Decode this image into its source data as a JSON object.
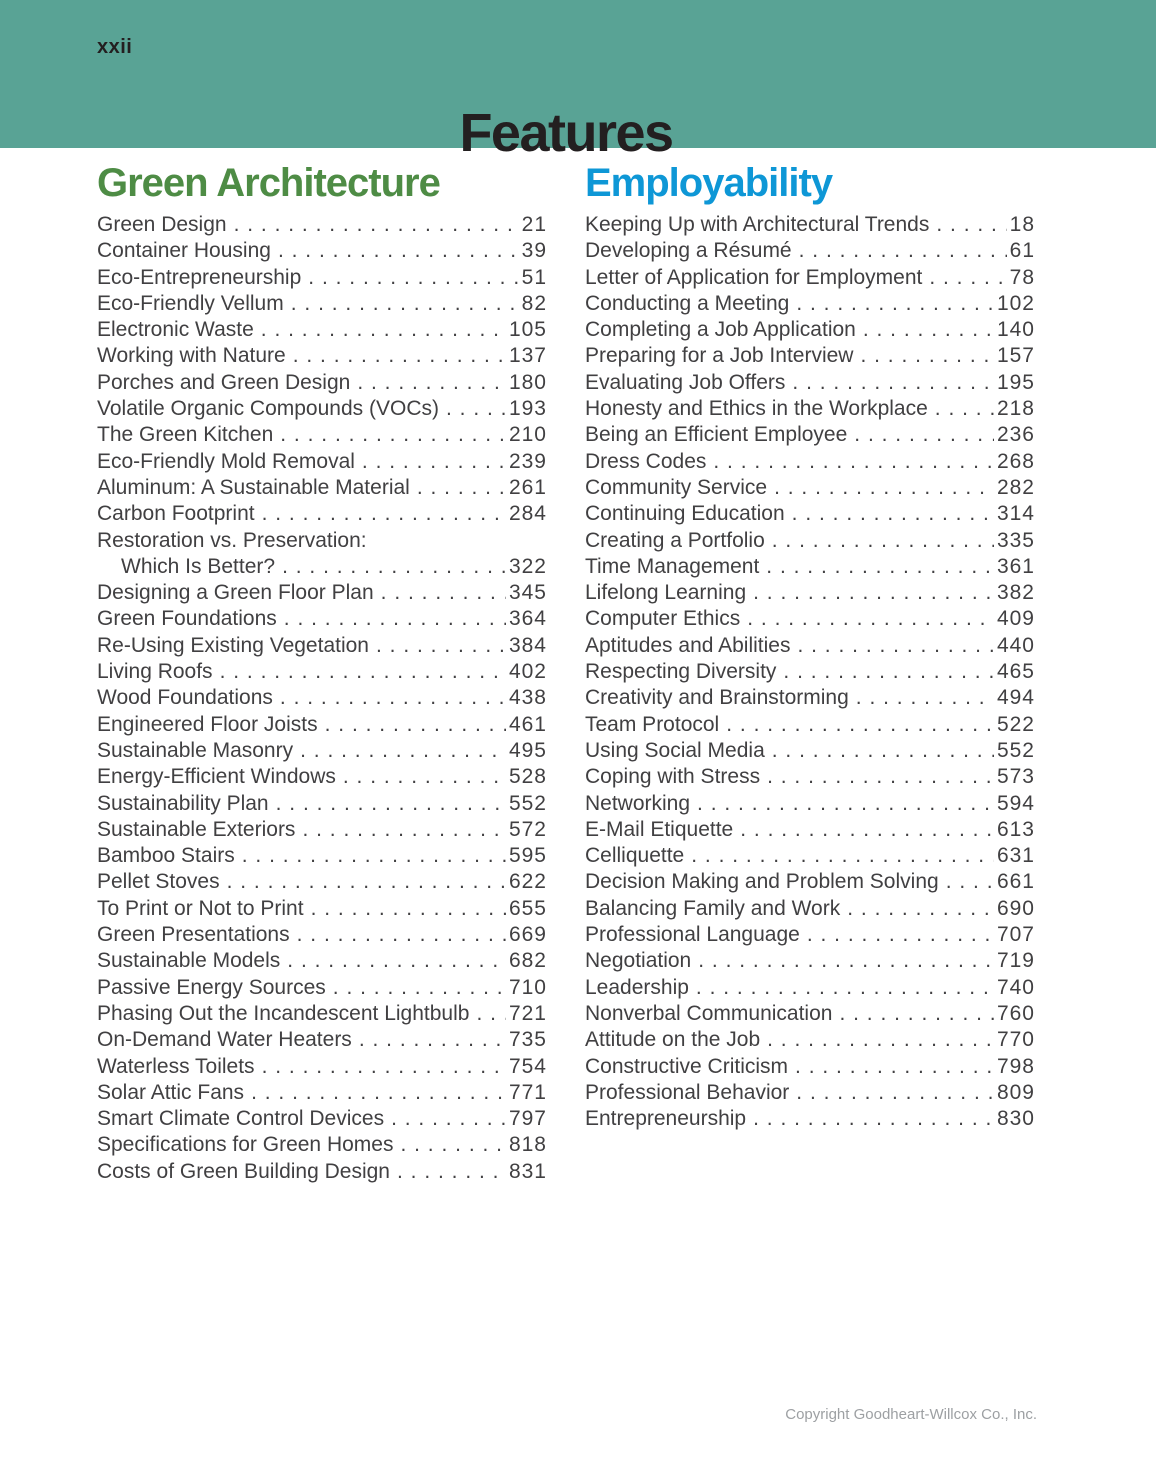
{
  "page": {
    "folio": "xxii",
    "title": "Features",
    "copyright": "Copyright Goodheart-Willcox Co., Inc."
  },
  "colors": {
    "header_band": "#59A395",
    "title_ink": "#231F20",
    "green_heading": "#4E8C45",
    "blue_heading": "#0E97D6",
    "body_text": "#414042",
    "copyright_gray": "#9DA0A3"
  },
  "sections": [
    {
      "heading": "Green Architecture",
      "entries": [
        {
          "title": "Green Design",
          "page": "21"
        },
        {
          "title": "Container Housing",
          "page": "39"
        },
        {
          "title": "Eco-Entrepreneurship",
          "page": "51"
        },
        {
          "title": "Eco-Friendly Vellum",
          "page": "82"
        },
        {
          "title": "Electronic Waste",
          "page": "105"
        },
        {
          "title": "Working with Nature",
          "page": "137"
        },
        {
          "title": "Porches and Green Design",
          "page": "180"
        },
        {
          "title": "Volatile Organic Compounds (VOCs)",
          "page": "193"
        },
        {
          "title": "The Green Kitchen",
          "page": "210"
        },
        {
          "title": "Eco-Friendly Mold Removal",
          "page": "239"
        },
        {
          "title": "Aluminum: A Sustainable Material",
          "page": "261"
        },
        {
          "title": "Carbon Footprint",
          "page": "284"
        },
        {
          "title": "Restoration vs. Preservation:",
          "page": ""
        },
        {
          "title": "Which Is Better?",
          "page": "322",
          "indent": true
        },
        {
          "title": "Designing a Green Floor Plan",
          "page": "345"
        },
        {
          "title": "Green Foundations",
          "page": "364"
        },
        {
          "title": "Re-Using Existing Vegetation",
          "page": "384"
        },
        {
          "title": "Living Roofs",
          "page": "402"
        },
        {
          "title": "Wood Foundations",
          "page": "438"
        },
        {
          "title": "Engineered Floor Joists",
          "page": "461"
        },
        {
          "title": "Sustainable Masonry",
          "page": "495"
        },
        {
          "title": "Energy-Efficient Windows",
          "page": "528"
        },
        {
          "title": "Sustainability Plan",
          "page": "552"
        },
        {
          "title": "Sustainable Exteriors",
          "page": "572"
        },
        {
          "title": "Bamboo Stairs",
          "page": "595"
        },
        {
          "title": "Pellet Stoves",
          "page": "622"
        },
        {
          "title": "To Print or Not to Print",
          "page": "655"
        },
        {
          "title": "Green Presentations",
          "page": "669"
        },
        {
          "title": "Sustainable Models",
          "page": "682"
        },
        {
          "title": "Passive Energy Sources",
          "page": "710"
        },
        {
          "title": "Phasing Out the Incandescent Lightbulb",
          "page": "721"
        },
        {
          "title": "On-Demand Water Heaters",
          "page": "735"
        },
        {
          "title": "Waterless Toilets",
          "page": "754"
        },
        {
          "title": "Solar Attic Fans",
          "page": "771"
        },
        {
          "title": "Smart Climate Control Devices",
          "page": "797"
        },
        {
          "title": "Specifications for Green Homes",
          "page": "818"
        },
        {
          "title": "Costs of Green Building Design",
          "page": "831"
        }
      ]
    },
    {
      "heading": "Employability",
      "entries": [
        {
          "title": "Keeping Up with Architectural Trends",
          "page": "18"
        },
        {
          "title": "Developing a Résumé",
          "page": "61"
        },
        {
          "title": "Letter of Application for Employment",
          "page": "78"
        },
        {
          "title": "Conducting a Meeting",
          "page": "102"
        },
        {
          "title": "Completing a Job Application",
          "page": "140"
        },
        {
          "title": "Preparing for a Job Interview",
          "page": "157"
        },
        {
          "title": "Evaluating Job Offers",
          "page": "195"
        },
        {
          "title": "Honesty and Ethics in the Workplace",
          "page": "218"
        },
        {
          "title": "Being an Efficient Employee",
          "page": "236"
        },
        {
          "title": "Dress Codes",
          "page": "268"
        },
        {
          "title": "Community Service",
          "page": "282"
        },
        {
          "title": "Continuing Education",
          "page": "314"
        },
        {
          "title": "Creating a Portfolio",
          "page": "335"
        },
        {
          "title": "Time Management",
          "page": "361"
        },
        {
          "title": "Lifelong Learning",
          "page": "382"
        },
        {
          "title": "Computer Ethics",
          "page": "409"
        },
        {
          "title": "Aptitudes and Abilities",
          "page": "440"
        },
        {
          "title": "Respecting Diversity",
          "page": "465"
        },
        {
          "title": "Creativity and Brainstorming",
          "page": "494"
        },
        {
          "title": "Team Protocol",
          "page": "522"
        },
        {
          "title": "Using Social Media",
          "page": "552"
        },
        {
          "title": "Coping with Stress",
          "page": "573"
        },
        {
          "title": "Networking",
          "page": "594"
        },
        {
          "title": "E-Mail Etiquette",
          "page": "613"
        },
        {
          "title": "Celliquette",
          "page": "631"
        },
        {
          "title": "Decision Making and Problem Solving",
          "page": "661"
        },
        {
          "title": "Balancing Family and Work",
          "page": "690"
        },
        {
          "title": "Professional Language",
          "page": "707"
        },
        {
          "title": "Negotiation",
          "page": "719"
        },
        {
          "title": "Leadership",
          "page": "740"
        },
        {
          "title": "Nonverbal Communication",
          "page": "760"
        },
        {
          "title": "Attitude on the Job",
          "page": "770"
        },
        {
          "title": "Constructive Criticism",
          "page": "798"
        },
        {
          "title": "Professional Behavior",
          "page": "809"
        },
        {
          "title": "Entrepreneurship",
          "page": "830"
        }
      ]
    }
  ]
}
